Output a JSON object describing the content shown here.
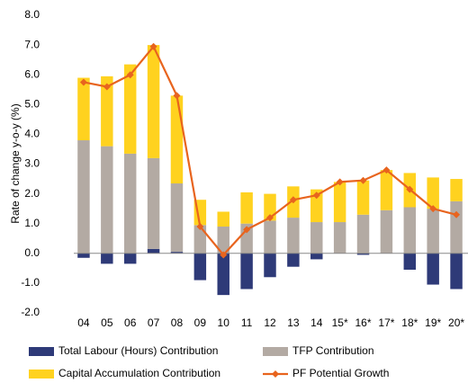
{
  "chart_data": {
    "type": "bar-line",
    "y_label": "Rate of change y-o-y (%)",
    "categories": [
      "04",
      "05",
      "06",
      "07",
      "08",
      "09",
      "10",
      "11",
      "12",
      "13",
      "14",
      "15*",
      "16*",
      "17*",
      "18*",
      "19*",
      "20*"
    ],
    "series": [
      {
        "name": "Total Labour (Hours) Contribution",
        "type": "bar",
        "color": "#2e3a78",
        "values": [
          -0.15,
          -0.35,
          -0.35,
          0.15,
          0.05,
          -0.9,
          -1.4,
          -1.2,
          -0.8,
          -0.45,
          -0.2,
          0.0,
          -0.05,
          0.0,
          -0.55,
          -1.05,
          -1.2
        ]
      },
      {
        "name": "TFP Contribution",
        "type": "bar",
        "color": "#b3aaa3",
        "values": [
          3.8,
          3.6,
          3.35,
          3.05,
          2.3,
          0.95,
          0.9,
          1.0,
          1.1,
          1.2,
          1.05,
          1.05,
          1.3,
          1.45,
          1.55,
          1.5,
          1.75
        ]
      },
      {
        "name": "Capital Accumulation Contribution",
        "type": "bar",
        "color": "#ffd21f",
        "values": [
          2.1,
          2.35,
          3.0,
          3.8,
          2.95,
          0.85,
          0.5,
          1.05,
          0.9,
          1.05,
          1.1,
          1.35,
          1.15,
          1.35,
          1.15,
          1.05,
          0.75
        ]
      },
      {
        "name": "PF Potential Growth",
        "type": "line",
        "color": "#e8641e",
        "values": [
          5.75,
          5.6,
          6.0,
          6.95,
          5.3,
          0.9,
          -0.05,
          0.8,
          1.2,
          1.8,
          1.95,
          2.4,
          2.45,
          2.8,
          2.15,
          1.5,
          1.3
        ]
      }
    ],
    "ylim": [
      -2,
      8
    ],
    "yticks": [
      {
        "value": -2,
        "label": "-2.0"
      },
      {
        "value": -1,
        "label": "-1.0"
      },
      {
        "value": 0,
        "label": "0.0"
      },
      {
        "value": 1,
        "label": "1.0"
      },
      {
        "value": 2,
        "label": "2.0"
      },
      {
        "value": 3,
        "label": "3.0"
      },
      {
        "value": 4,
        "label": "4.0"
      },
      {
        "value": 5,
        "label": "5.0"
      },
      {
        "value": 6,
        "label": "6.0"
      },
      {
        "value": 7,
        "label": "7.0"
      },
      {
        "value": 8,
        "label": "8.0"
      }
    ]
  }
}
